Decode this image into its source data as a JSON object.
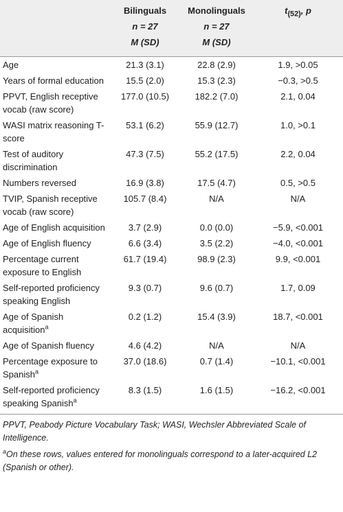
{
  "table": {
    "header": [
      {
        "lines": [
          "Bilinguals",
          "n = 27",
          "M (SD)"
        ]
      },
      {
        "lines": [
          "Monolinguals",
          "n = 27",
          "M (SD)"
        ]
      },
      {
        "stat": "t",
        "sub": "(52)",
        "rest": ", p"
      }
    ],
    "rows": [
      {
        "cells": [
          "Age",
          "21.3 (3.1)",
          "22.8 (2.9)",
          "1.9, >0.05"
        ]
      },
      {
        "cells": [
          "Years of formal education",
          "15.5 (2.0)",
          "15.3 (2.3)",
          "−0.3, >0.5"
        ]
      },
      {
        "cells": [
          "PPVT, English receptive vocab (raw score)",
          "177.0 (10.5)",
          "182.2 (7.0)",
          "2.1, 0.04"
        ]
      },
      {
        "cells": [
          "WASI matrix reasoning T-score",
          "53.1 (6.2)",
          "55.9 (12.7)",
          "1.0, >0.1"
        ]
      },
      {
        "cells": [
          "Test of auditory discrimination",
          "47.3 (7.5)",
          "55.2 (17.5)",
          "2.2, 0.04"
        ]
      },
      {
        "cells": [
          "Numbers reversed",
          "16.9 (3.8)",
          "17.5 (4.7)",
          "0.5, >0.5"
        ]
      },
      {
        "cells": [
          "TVIP, Spanish receptive vocab (raw score)",
          "105.7 (8.4)",
          "N/A",
          "N/A"
        ]
      },
      {
        "cells": [
          "Age of English acquisition",
          "3.7 (2.9)",
          "0.0 (0.0)",
          "−5.9, <0.001"
        ]
      },
      {
        "cells": [
          "Age of English fluency",
          "6.6 (3.4)",
          "3.5 (2.2)",
          "−4.0, <0.001"
        ]
      },
      {
        "cells": [
          "Percentage current exposure to English",
          "61.7 (19.4)",
          "98.9 (2.3)",
          "9.9, <0.001"
        ]
      },
      {
        "cells": [
          "Self-reported proficiency speaking English",
          "9.3 (0.7)",
          "9.6 (0.7)",
          "1.7, 0.09"
        ]
      },
      {
        "cells": [
          "Age of Spanish acquisition",
          "0.2 (1.2)",
          "15.4 (3.9)",
          "18.7, <0.001"
        ],
        "note": "a"
      },
      {
        "cells": [
          "Age of Spanish fluency",
          "4.6 (4.2)",
          "N/A",
          "N/A"
        ]
      },
      {
        "cells": [
          "Percentage exposure to Spanish",
          "37.0 (18.6)",
          "0.7 (1.4)",
          "−10.1, <0.001"
        ],
        "note": "a"
      },
      {
        "cells": [
          "Self-reported proficiency speaking Spanish",
          "8.3 (1.5)",
          "1.6 (1.5)",
          "−16.2, <0.001"
        ],
        "note": "a"
      }
    ],
    "footnotes": [
      {
        "text": "PPVT, Peabody Picture Vocabulary Task; WASI, Wechsler Abbreviated Scale of Intelligence."
      },
      {
        "mark": "a",
        "text": "On these rows, values entered for monolinguals correspond to a later-acquired L2 (Spanish or other)."
      }
    ]
  }
}
